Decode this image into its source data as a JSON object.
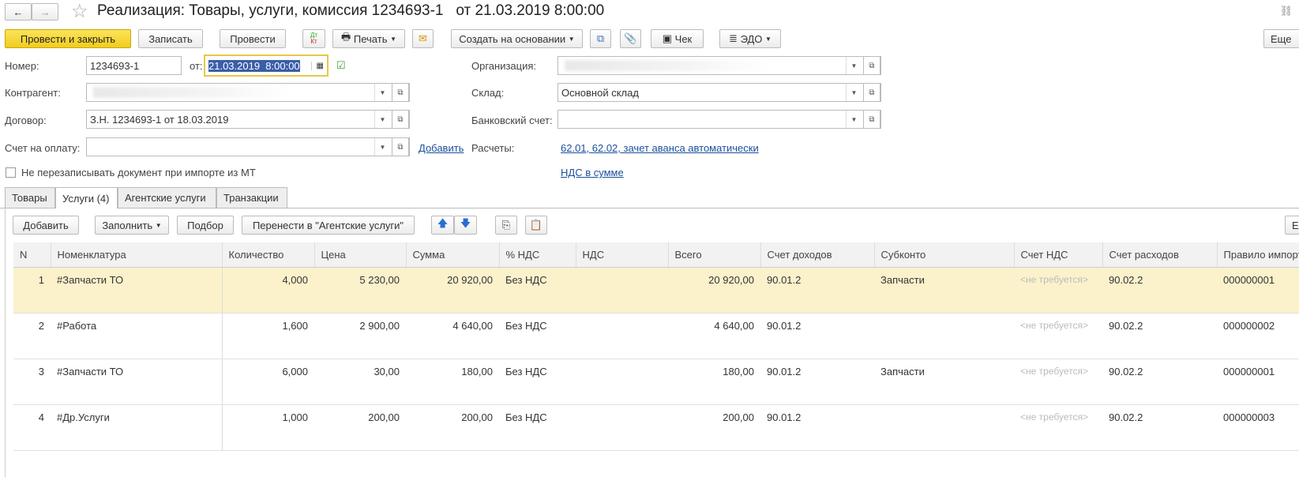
{
  "window": {
    "title": "Реализация: Товары, услуги, комиссия 1234693-1   от 21.03.2019 8:00:00",
    "nav_back": "←",
    "nav_forward": "→",
    "star": "☆",
    "link_icon": "🔗"
  },
  "toolbar": {
    "post_close": "Провести и закрыть",
    "save": "Записать",
    "post": "Провести",
    "dtkt_top": "Дт",
    "dtkt_bottom": "Кт",
    "print": "Печать",
    "create_based": "Создать на основании",
    "check": "Чек",
    "edo": "ЭДО",
    "more": "Еще"
  },
  "form": {
    "number_label": "Номер:",
    "number": "1234693-1",
    "date_label": "от:",
    "date": "21.03.2019  8:00:00",
    "counterparty_label": "Контрагент:",
    "contract_label": "Договор:",
    "contract": "З.Н. 1234693-1 от 18.03.2019",
    "invoice_label": "Счет на оплату:",
    "add_link": "Добавить",
    "org_label": "Организация:",
    "warehouse_label": "Склад:",
    "warehouse": "Основной склад",
    "bank_label": "Банковский счет:",
    "settlements_label": "Расчеты:",
    "settlements": "62.01, 62.02, зачет аванса автоматически",
    "vat_link": "НДС в сумме",
    "no_overwrite": "Не перезаписывать документ при импорте из МТ"
  },
  "tabs": [
    "Товары",
    "Услуги (4)",
    "Агентские услуги",
    "Транзакции"
  ],
  "table_toolbar": {
    "add": "Добавить",
    "fill": "Заполнить",
    "pick": "Подбор",
    "move": "Перенести в \"Агентские услуги\"",
    "more": "Е"
  },
  "table": {
    "headers": [
      "N",
      "Номенклатура",
      "Количество",
      "Цена",
      "Сумма",
      "% НДС",
      "НДС",
      "Всего",
      "Счет доходов",
      "Субконто",
      "Счет НДС",
      "Счет расходов",
      "Правило импорт"
    ],
    "rows": [
      [
        "1",
        "#Запчасти ТО",
        "4,000",
        "5 230,00",
        "20 920,00",
        "Без НДС",
        "",
        "20 920,00",
        "90.01.2",
        "Запчасти",
        "<не требуется>",
        "90.02.2",
        "000000001"
      ],
      [
        "2",
        "#Работа",
        "1,600",
        "2 900,00",
        "4 640,00",
        "Без НДС",
        "",
        "4 640,00",
        "90.01.2",
        "",
        "<не требуется>",
        "90.02.2",
        "000000002"
      ],
      [
        "3",
        "#Запчасти ТО",
        "6,000",
        "30,00",
        "180,00",
        "Без НДС",
        "",
        "180,00",
        "90.01.2",
        "Запчасти",
        "<не требуется>",
        "90.02.2",
        "000000001"
      ],
      [
        "4",
        "#Др.Услуги",
        "1,000",
        "200,00",
        "200,00",
        "Без НДС",
        "",
        "200,00",
        "90.01.2",
        "",
        "<не требуется>",
        "90.02.2",
        "000000003"
      ]
    ]
  }
}
